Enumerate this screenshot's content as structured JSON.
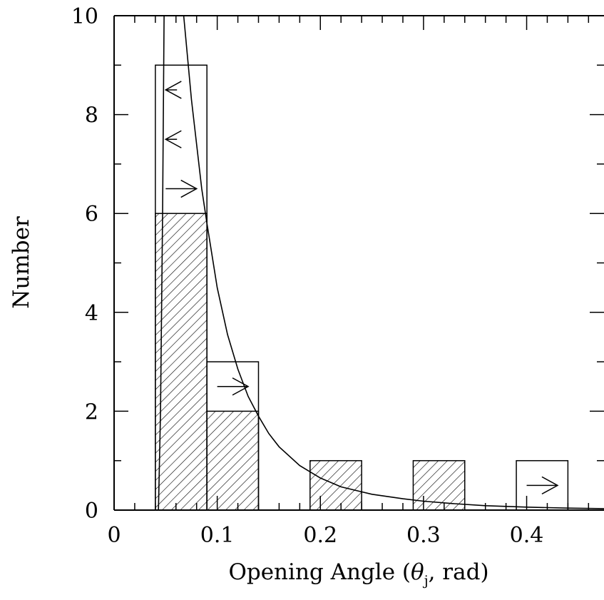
{
  "chart_data": {
    "type": "bar",
    "xlabel_parts": {
      "before": "Opening Angle (",
      "symbol": "θ",
      "subscript": "j",
      "after": ", rad)"
    },
    "ylabel": "Number",
    "xlim": [
      0,
      0.475
    ],
    "ylim": [
      0,
      10
    ],
    "x_ticks": [
      {
        "value": 0,
        "label": "0"
      },
      {
        "value": 0.1,
        "label": "0.1"
      },
      {
        "value": 0.2,
        "label": "0.2"
      },
      {
        "value": 0.3,
        "label": "0.3"
      },
      {
        "value": 0.4,
        "label": "0.4"
      }
    ],
    "y_ticks": [
      {
        "value": 0,
        "label": "0"
      },
      {
        "value": 2,
        "label": "2"
      },
      {
        "value": 4,
        "label": "4"
      },
      {
        "value": 6,
        "label": "6"
      },
      {
        "value": 8,
        "label": "8"
      },
      {
        "value": 10,
        "label": "10"
      }
    ],
    "bin_width": 0.05,
    "series": [
      {
        "style": "hatched",
        "bins": [
          {
            "x0": 0.04,
            "x1": 0.09,
            "count": 6
          },
          {
            "x0": 0.09,
            "x1": 0.14,
            "count": 2
          },
          {
            "x0": 0.19,
            "x1": 0.24,
            "count": 1
          },
          {
            "x0": 0.29,
            "x1": 0.34,
            "count": 1
          }
        ]
      },
      {
        "style": "outline",
        "bins": [
          {
            "x0": 0.04,
            "x1": 0.09,
            "count": 9
          },
          {
            "x0": 0.09,
            "x1": 0.14,
            "count": 3
          },
          {
            "x0": 0.39,
            "x1": 0.44,
            "count": 1
          }
        ]
      }
    ],
    "limit_arrows": [
      {
        "direction": "left",
        "x_start": 0.061,
        "x_end": 0.05,
        "y": 8.5
      },
      {
        "direction": "left",
        "x_start": 0.061,
        "x_end": 0.05,
        "y": 7.5
      },
      {
        "direction": "right",
        "x_start": 0.05,
        "x_end": 0.08,
        "y": 6.5
      },
      {
        "direction": "right",
        "x_start": 0.1,
        "x_end": 0.13,
        "y": 2.5
      },
      {
        "direction": "right",
        "x_start": 0.4,
        "x_end": 0.43,
        "y": 0.5
      }
    ],
    "curves": [
      {
        "type": "line",
        "description_points": [
          [
            0.043,
            0.0
          ],
          [
            0.045,
            2.0
          ],
          [
            0.047,
            6.0
          ],
          [
            0.0485,
            10.0
          ]
        ]
      },
      {
        "type": "line",
        "description_points": [
          [
            0.0675,
            10.0
          ],
          [
            0.075,
            8.3
          ],
          [
            0.085,
            6.5
          ],
          [
            0.09,
            5.8
          ],
          [
            0.1,
            4.5
          ],
          [
            0.11,
            3.55
          ],
          [
            0.12,
            2.85
          ],
          [
            0.13,
            2.3
          ],
          [
            0.14,
            1.9
          ],
          [
            0.15,
            1.55
          ],
          [
            0.16,
            1.28
          ],
          [
            0.18,
            0.9
          ],
          [
            0.2,
            0.65
          ],
          [
            0.22,
            0.47
          ],
          [
            0.25,
            0.32
          ],
          [
            0.28,
            0.23
          ],
          [
            0.3,
            0.18
          ],
          [
            0.33,
            0.13
          ],
          [
            0.36,
            0.09
          ],
          [
            0.4,
            0.06
          ],
          [
            0.44,
            0.04
          ],
          [
            0.475,
            0.03
          ]
        ]
      }
    ]
  }
}
